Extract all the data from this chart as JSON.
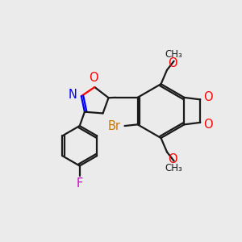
{
  "bg_color": "#ebebeb",
  "bond_color": "#1a1a1a",
  "N_color": "#0000ff",
  "O_color": "#ff0000",
  "F_color": "#cc00cc",
  "Br_color": "#cc7700",
  "label_fontsize": 10.5,
  "small_fontsize": 8.5,
  "figsize": [
    3.0,
    3.0
  ],
  "dpi": 100,
  "xlim": [
    0,
    12
  ],
  "ylim": [
    0,
    12
  ]
}
